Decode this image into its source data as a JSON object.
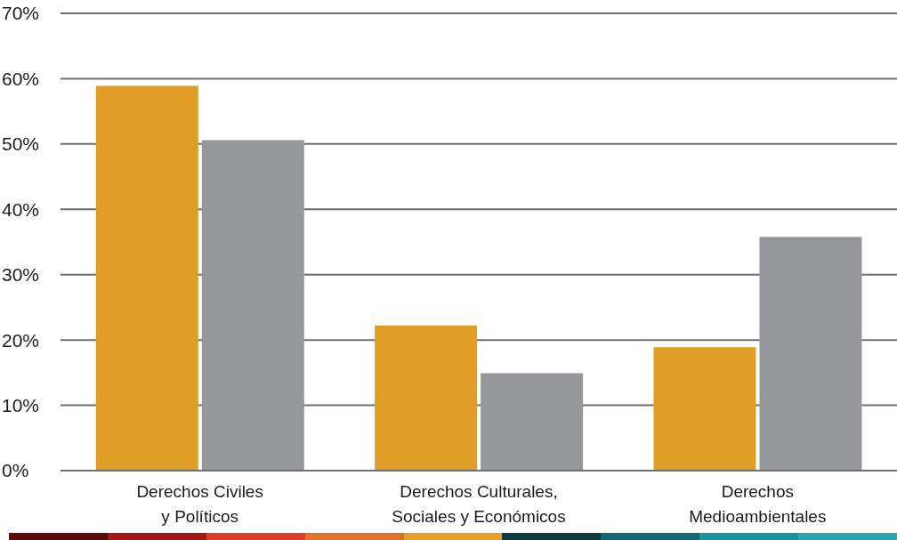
{
  "chart_data": {
    "type": "bar",
    "categories": [
      "Derechos Civiles\ny Políticos",
      "Derechos Culturales,\nSociales y Económicos",
      "Derechos\nMedioambientales"
    ],
    "series": [
      {
        "color": "#e09e26",
        "values": [
          58.9,
          22.2,
          18.9
        ]
      },
      {
        "color": "#97989b",
        "values": [
          50.6,
          14.9,
          35.8
        ]
      }
    ],
    "ylim": [
      0,
      70
    ],
    "yticks": [
      {
        "value": 0,
        "label": "0%"
      },
      {
        "value": 10,
        "label": "10%"
      },
      {
        "value": 20,
        "label": "20%"
      },
      {
        "value": 30,
        "label": "30%"
      },
      {
        "value": 40,
        "label": "40%"
      },
      {
        "value": 50,
        "label": "50%"
      },
      {
        "value": 60,
        "label": "60%"
      },
      {
        "value": 70,
        "label": "70%"
      }
    ],
    "grid": "y",
    "legend": false
  }
}
